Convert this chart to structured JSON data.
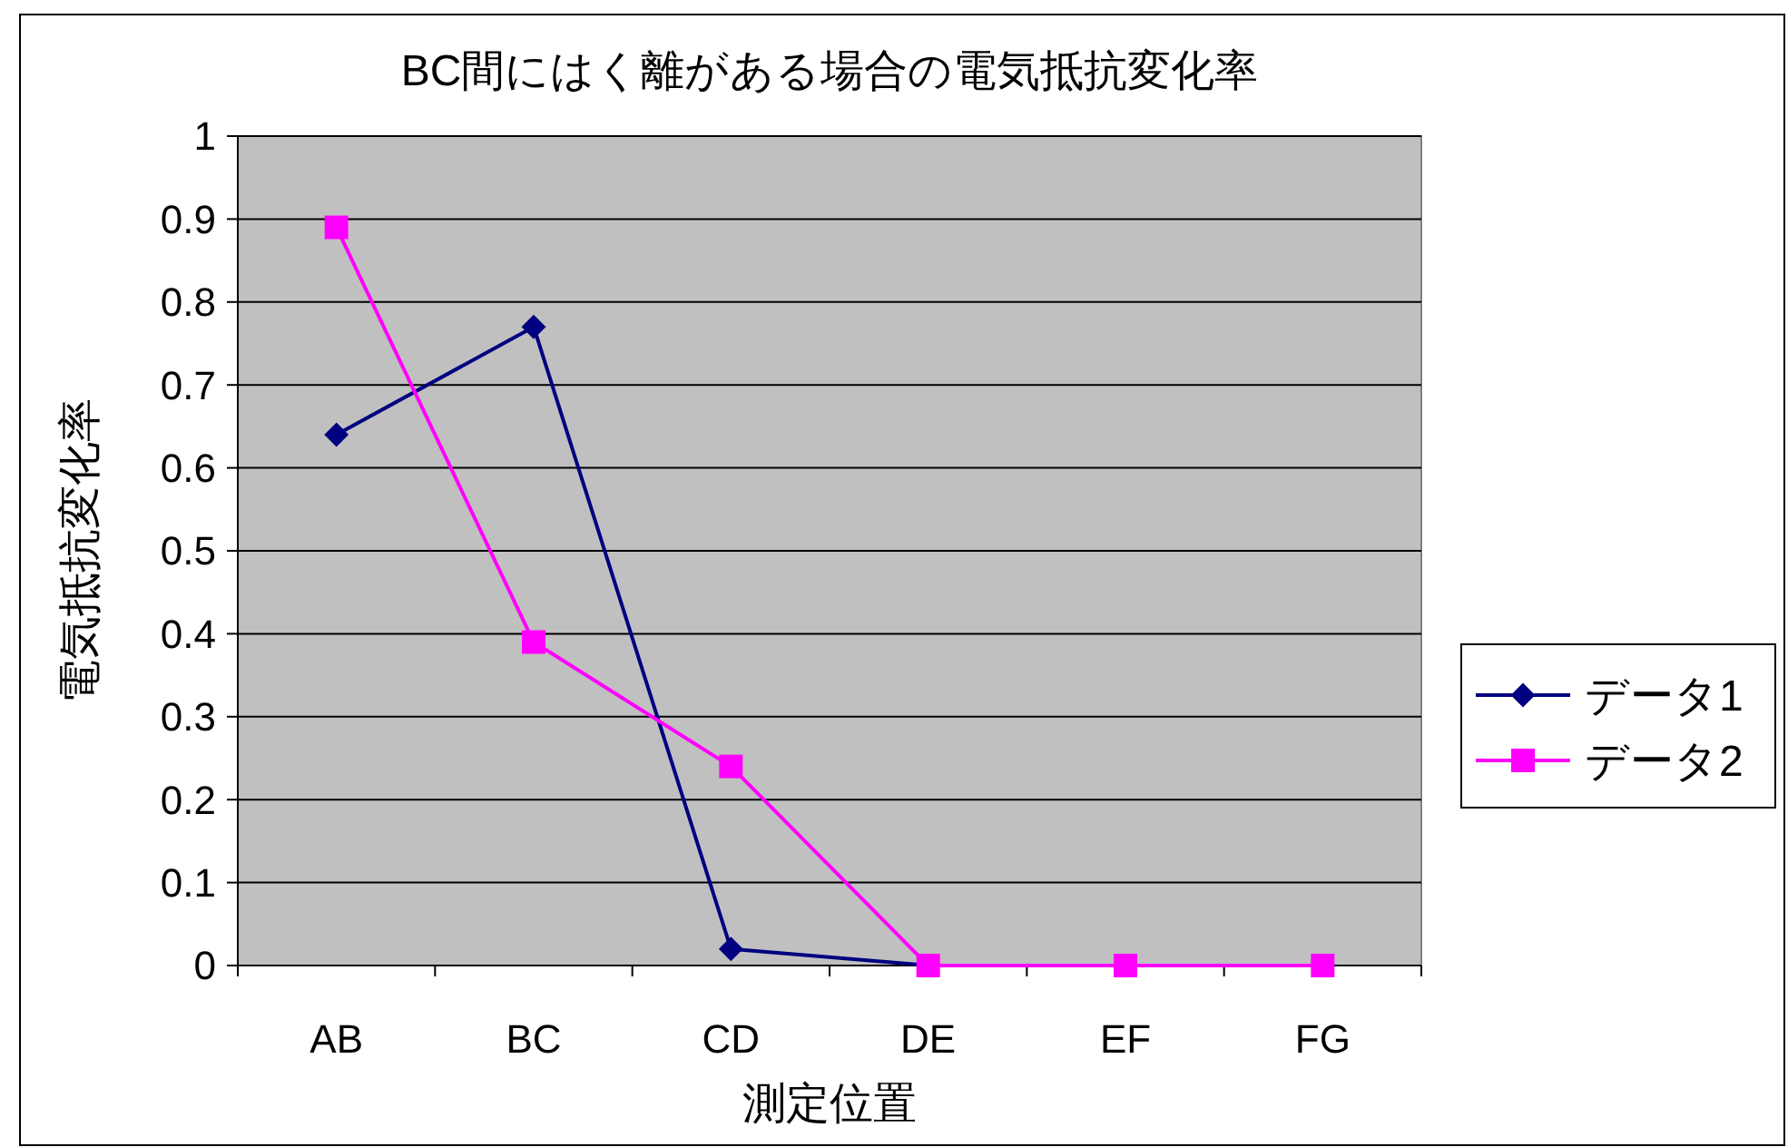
{
  "chart_data": {
    "type": "line",
    "title": "BC間にはく離がある場合の電気抵抗変化率",
    "xlabel": "測定位置",
    "ylabel": "電気抵抗変化率",
    "categories": [
      "AB",
      "BC",
      "CD",
      "DE",
      "EF",
      "FG"
    ],
    "series": [
      {
        "name": "データ1",
        "color": "#000080",
        "marker": "diamond",
        "values": [
          0.64,
          0.77,
          0.02,
          0,
          0,
          0
        ]
      },
      {
        "name": "データ2",
        "color": "#ff00ff",
        "marker": "square",
        "values": [
          0.89,
          0.39,
          0.24,
          0,
          0,
          0
        ]
      }
    ],
    "ylim": [
      0,
      1
    ],
    "yticks": [
      0,
      0.1,
      0.2,
      0.3,
      0.4,
      0.5,
      0.6,
      0.7,
      0.8,
      0.9,
      1
    ],
    "grid": "y",
    "legend": "right",
    "line_style": "solid"
  }
}
